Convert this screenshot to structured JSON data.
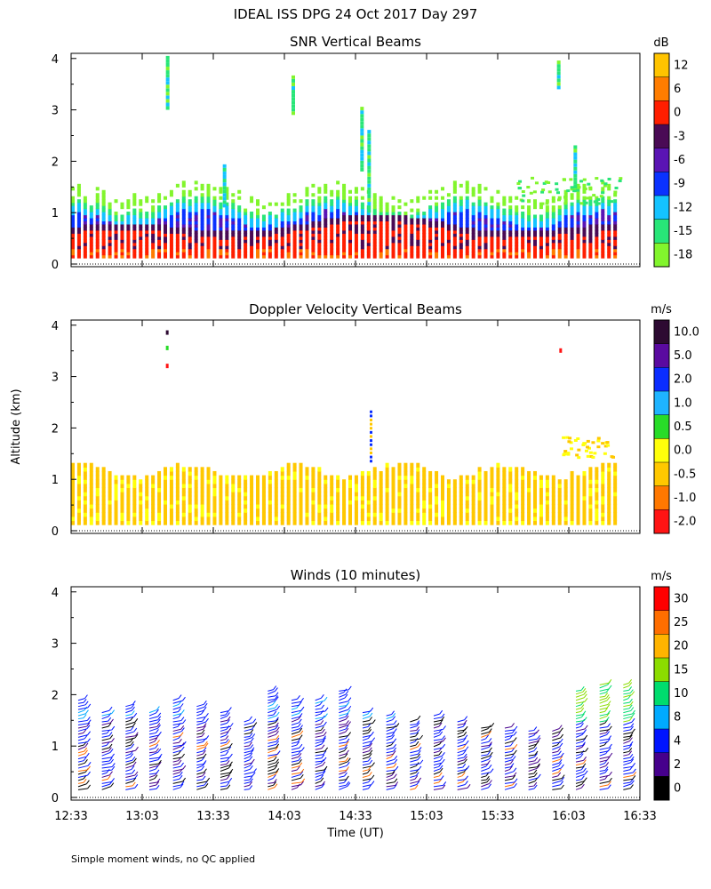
{
  "title": "IDEAL ISS DPG  24 Oct 2017 Day 297",
  "ylabel": "Altitude (km)",
  "xlabel": "Time (UT)",
  "footnote": "Simple moment winds, no QC applied",
  "time_ticks": [
    "12:33",
    "13:03",
    "13:33",
    "14:03",
    "14:33",
    "15:03",
    "15:33",
    "16:03",
    "16:33"
  ],
  "alt_ticks": [
    "0",
    "1",
    "2",
    "3",
    "4"
  ],
  "chart_data": [
    {
      "type": "heatmap",
      "title": "SNR Vertical Beams",
      "xlabel": "Time (UT)",
      "ylabel": "Altitude (km)",
      "xlim": [
        "12:33",
        "16:33"
      ],
      "ylim": [
        0,
        4
      ],
      "colorbar": {
        "unit": "dB",
        "labels": [
          "12",
          "6",
          "0",
          "-3",
          "-6",
          "-9",
          "-12",
          "-15",
          "-18"
        ],
        "colors": [
          "#ffc400",
          "#ff7d00",
          "#ff1e00",
          "#4a0a55",
          "#5a14b4",
          "#0a32ff",
          "#14c3ff",
          "#28e678",
          "#82f52d"
        ]
      },
      "summary": "Strong echoes (0 to 12 dB) below about 0.8 km, weakening to -18 dB near 1.2 km; isolated returns aloft near 13:13, 14:03, 14:33 and 16:00."
    },
    {
      "type": "heatmap",
      "title": "Doppler Velocity Vertical Beams",
      "xlabel": "Time (UT)",
      "ylabel": "Altitude (km)",
      "xlim": [
        "12:33",
        "16:33"
      ],
      "ylim": [
        0,
        4
      ],
      "colorbar": {
        "unit": "m/s",
        "labels": [
          "10.0",
          "5.0",
          "2.0",
          "1.0",
          "0.5",
          "0.0",
          "-0.5",
          "-1.0",
          "-2.0"
        ],
        "colors": [
          "#2d0a32",
          "#5a0aa0",
          "#0a2dff",
          "#1eb4ff",
          "#28dc28",
          "#ffff0a",
          "#ffc800",
          "#ff7800",
          "#ff1414"
        ]
      },
      "summary": "Near-zero vertical velocity (0.0 to -0.5 m/s) below about 1.2 km throughout the period."
    },
    {
      "type": "barbs",
      "title": "Winds (10 minutes)",
      "xlabel": "Time (UT)",
      "ylabel": "Altitude (km)",
      "xlim": [
        "12:33",
        "16:33"
      ],
      "ylim": [
        0,
        4
      ],
      "colorbar": {
        "unit": "m/s",
        "labels": [
          "30",
          "25",
          "20",
          "15",
          "10",
          "8",
          "4",
          "2",
          "0"
        ],
        "colors": [
          "#ff0000",
          "#ff6e00",
          "#ffb400",
          "#8cdc00",
          "#00dc6e",
          "#00aaff",
          "#0014ff",
          "#46008c",
          "#000000"
        ]
      },
      "profile_times": [
        "12:36",
        "12:46",
        "12:56",
        "13:06",
        "13:16",
        "13:26",
        "13:36",
        "13:46",
        "13:56",
        "14:06",
        "14:16",
        "14:26",
        "14:36",
        "14:46",
        "14:56",
        "15:06",
        "15:16",
        "15:26",
        "15:36",
        "15:46",
        "15:56",
        "16:06",
        "16:16",
        "16:26"
      ],
      "profile_tops_km": [
        1.9,
        1.7,
        1.8,
        1.7,
        1.9,
        1.8,
        1.7,
        1.5,
        2.1,
        1.9,
        1.9,
        2.1,
        1.7,
        1.6,
        1.5,
        1.6,
        1.5,
        1.4,
        1.4,
        1.3,
        1.3,
        2.1,
        2.2,
        2.2
      ],
      "summary": "Profiles every 10 minutes; mostly 2-8 m/s below 1.5 km, 10-20 m/s above 1.5 km late in the period."
    }
  ]
}
